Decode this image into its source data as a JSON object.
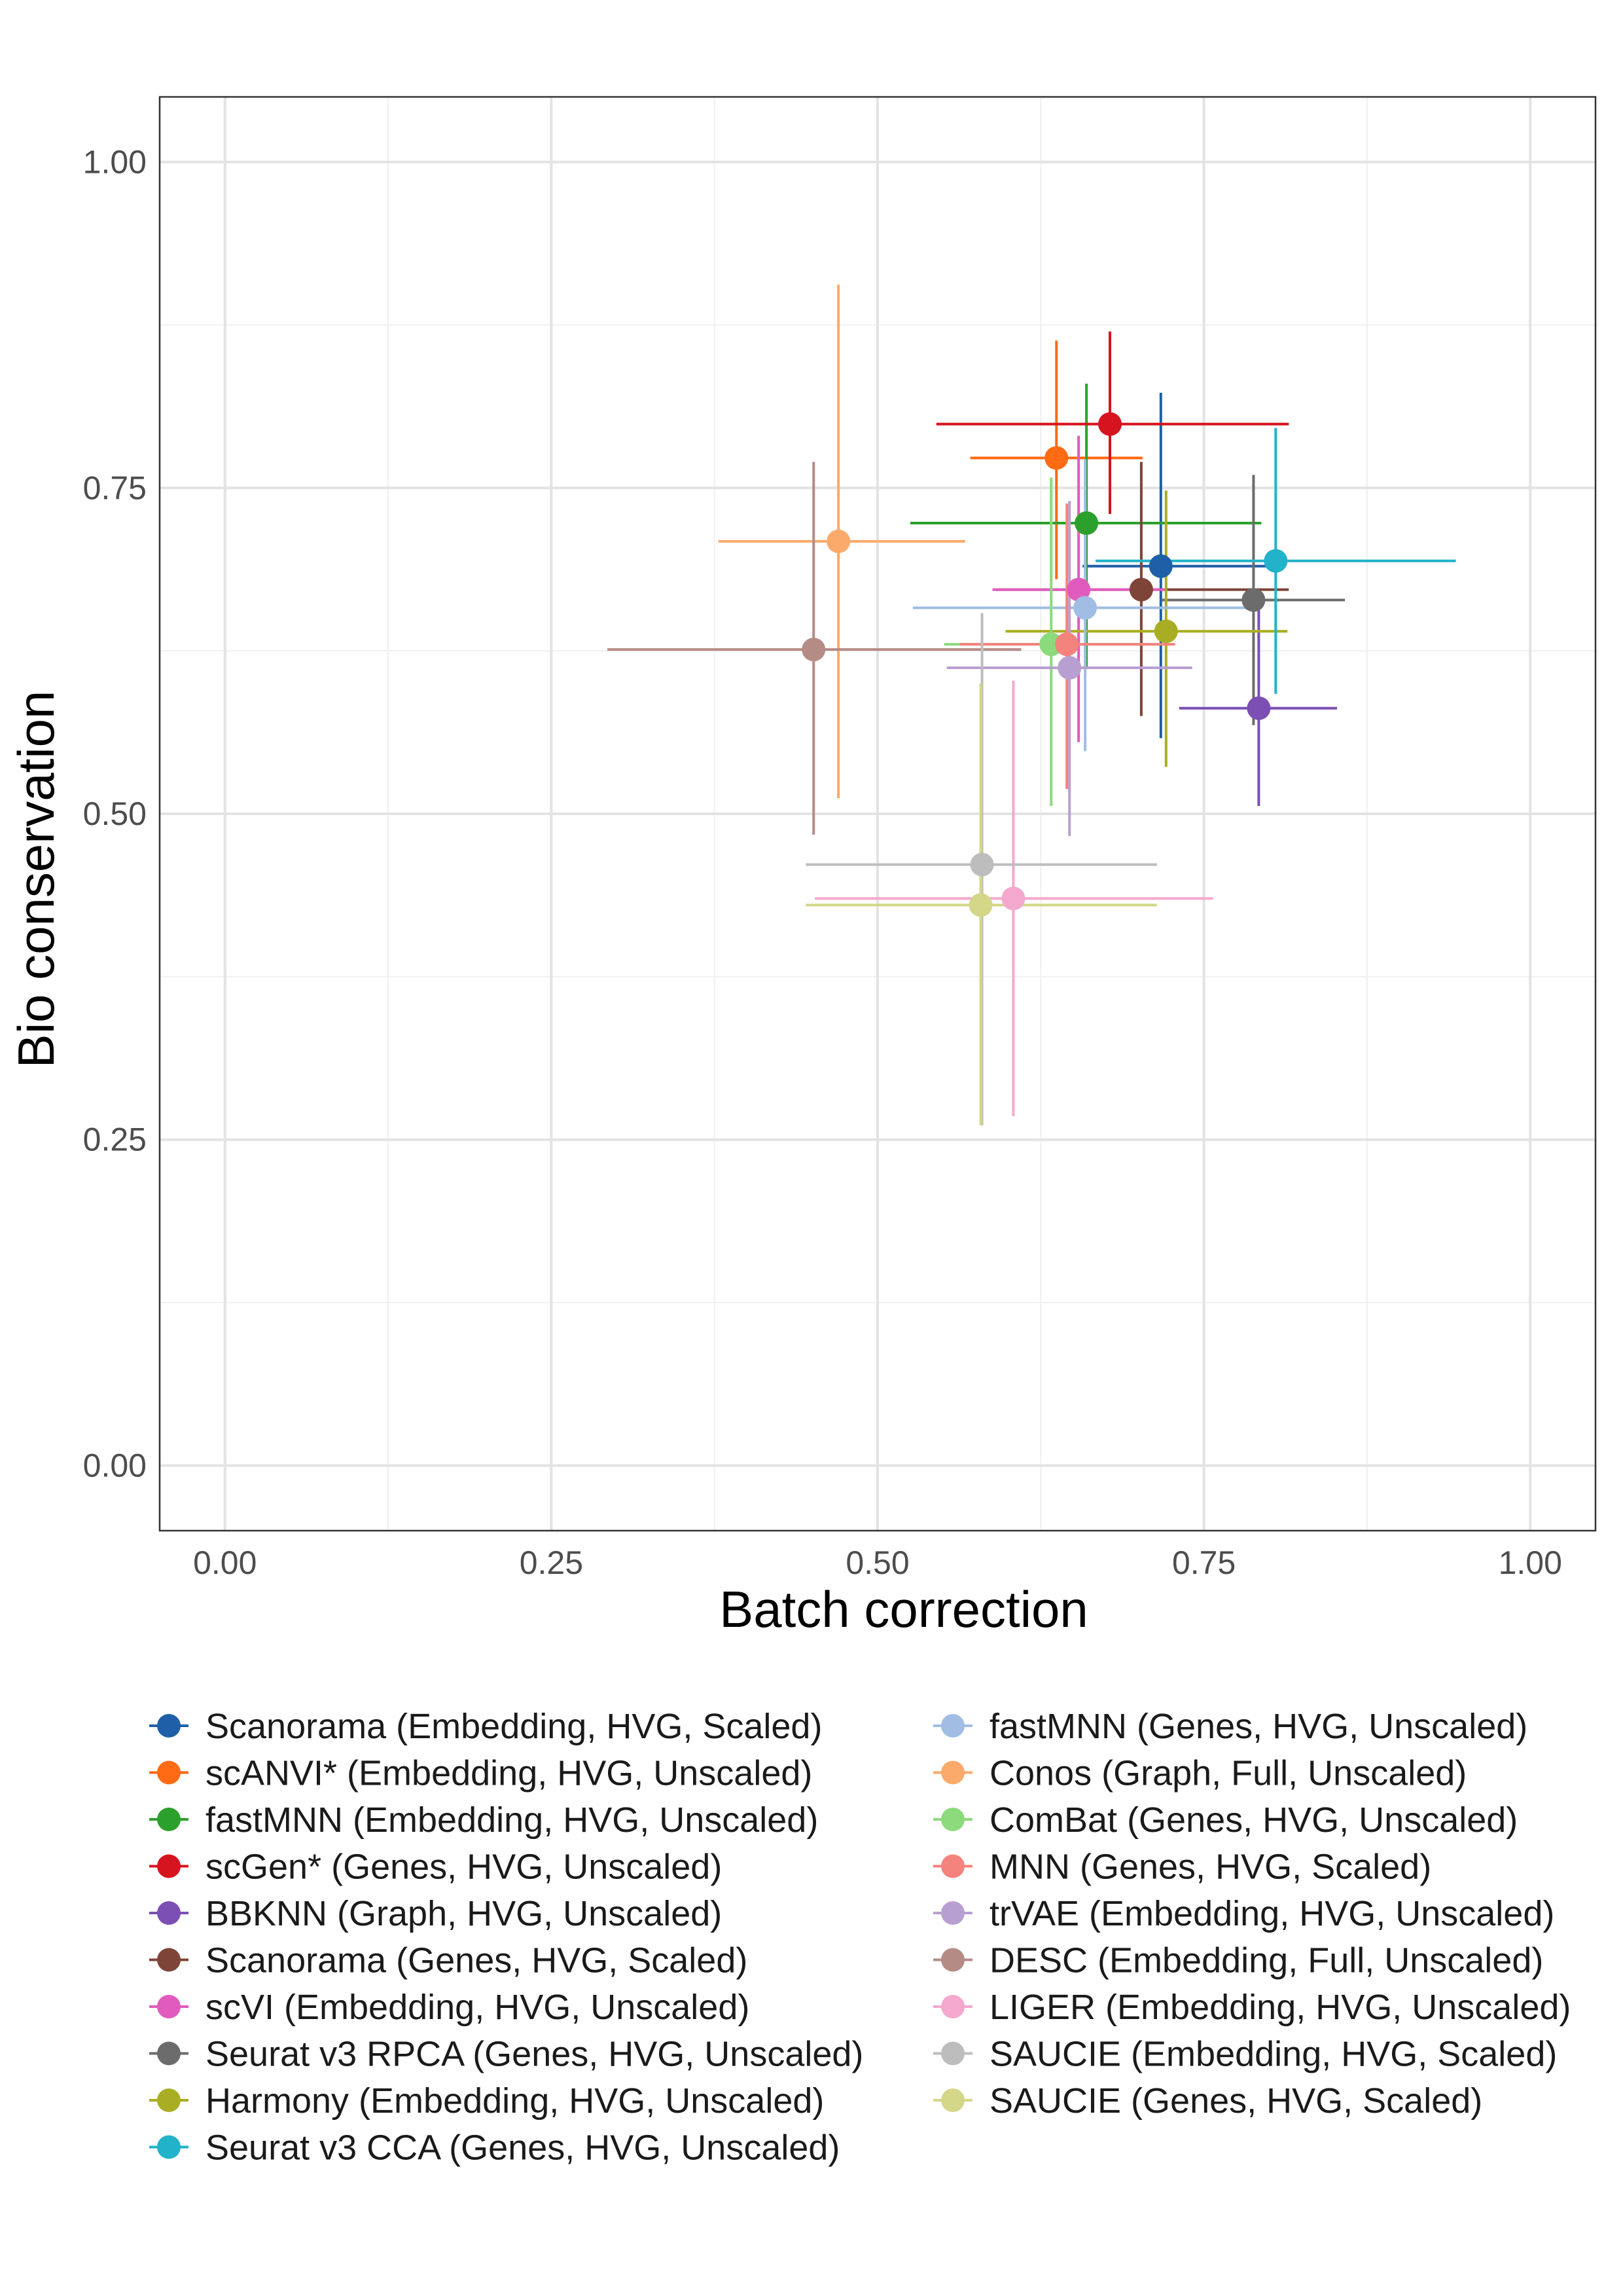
{
  "chart_data": {
    "type": "scatter",
    "xlabel": "Batch correction",
    "ylabel": "Bio conservation",
    "xlim": [
      -0.05,
      1.05
    ],
    "ylim": [
      -0.05,
      1.05
    ],
    "x_ticks": [
      "0.00",
      "0.25",
      "0.50",
      "0.75",
      "1.00"
    ],
    "y_ticks": [
      "0.00",
      "0.25",
      "0.50",
      "0.75",
      "1.00"
    ],
    "grid": true,
    "legend_position": "bottom, two columns",
    "series": [
      {
        "name": "Scanorama (Embedding, HVG, Scaled)",
        "color": "#1f5fa8",
        "x": 0.717,
        "y": 0.69,
        "x_err": [
          0.657,
          0.8
        ],
        "y_err": [
          0.558,
          0.823
        ]
      },
      {
        "name": "scANVI* (Embedding, HVG, Unscaled)",
        "color": "#ff6a13",
        "x": 0.637,
        "y": 0.773,
        "x_err": [
          0.571,
          0.703
        ],
        "y_err": [
          0.68,
          0.863
        ]
      },
      {
        "name": "fastMNN (Embedding, HVG, Unscaled)",
        "color": "#2ca02c",
        "x": 0.66,
        "y": 0.723,
        "x_err": [
          0.525,
          0.794
        ],
        "y_err": [
          0.613,
          0.83
        ]
      },
      {
        "name": "scGen* (Genes, HVG, Unscaled)",
        "color": "#d6141f",
        "x": 0.678,
        "y": 0.799,
        "x_err": [
          0.545,
          0.815
        ],
        "y_err": [
          0.73,
          0.87
        ]
      },
      {
        "name": "BBKNN (Graph, HVG, Unscaled)",
        "color": "#7b4fb3",
        "x": 0.792,
        "y": 0.581,
        "x_err": [
          0.731,
          0.852
        ],
        "y_err": [
          0.506,
          0.665
        ]
      },
      {
        "name": "Scanorama (Genes, HVG, Scaled)",
        "color": "#7e4438",
        "x": 0.702,
        "y": 0.672,
        "x_err": [
          0.59,
          0.815
        ],
        "y_err": [
          0.575,
          0.77
        ]
      },
      {
        "name": "scVI (Embedding, HVG, Unscaled)",
        "color": "#e05bbd",
        "x": 0.654,
        "y": 0.672,
        "x_err": [
          0.588,
          0.72
        ],
        "y_err": [
          0.555,
          0.79
        ]
      },
      {
        "name": "Seurat v3 RPCA (Genes, HVG, Unscaled)",
        "color": "#6c6c6c",
        "x": 0.788,
        "y": 0.664,
        "x_err": [
          0.718,
          0.858
        ],
        "y_err": [
          0.568,
          0.76
        ]
      },
      {
        "name": "Harmony (Embedding, HVG, Unscaled)",
        "color": "#a9ad23",
        "x": 0.721,
        "y": 0.64,
        "x_err": [
          0.598,
          0.814
        ],
        "y_err": [
          0.536,
          0.748
        ]
      },
      {
        "name": "Seurat v3 CCA (Genes, HVG, Unscaled)",
        "color": "#22b2c9",
        "x": 0.805,
        "y": 0.694,
        "x_err": [
          0.667,
          0.943
        ],
        "y_err": [
          0.592,
          0.796
        ]
      },
      {
        "name": "fastMNN (Genes, HVG, Unscaled)",
        "color": "#a1bde4",
        "x": 0.659,
        "y": 0.658,
        "x_err": [
          0.527,
          0.791
        ],
        "y_err": [
          0.548,
          0.772
        ]
      },
      {
        "name": "Conos (Graph, Full, Unscaled)",
        "color": "#fcaa6b",
        "x": 0.47,
        "y": 0.709,
        "x_err": [
          0.378,
          0.567
        ],
        "y_err": [
          0.512,
          0.906
        ]
      },
      {
        "name": "ComBat (Genes, HVG, Unscaled)",
        "color": "#8bda7b",
        "x": 0.633,
        "y": 0.63,
        "x_err": [
          0.551,
          0.715
        ],
        "y_err": [
          0.506,
          0.758
        ]
      },
      {
        "name": "MNN (Genes, HVG, Scaled)",
        "color": "#f4827d",
        "x": 0.645,
        "y": 0.63,
        "x_err": [
          0.563,
          0.728
        ],
        "y_err": [
          0.519,
          0.738
        ]
      },
      {
        "name": "trVAE (Embedding, HVG, Unscaled)",
        "color": "#b7a0d1",
        "x": 0.647,
        "y": 0.612,
        "x_err": [
          0.553,
          0.741
        ],
        "y_err": [
          0.483,
          0.74
        ]
      },
      {
        "name": "DESC (Embedding, Full, Unscaled)",
        "color": "#b58b86",
        "x": 0.451,
        "y": 0.626,
        "x_err": [
          0.293,
          0.61
        ],
        "y_err": [
          0.484,
          0.77
        ]
      },
      {
        "name": "LIGER (Embedding, HVG, Unscaled)",
        "color": "#f5a8cd",
        "x": 0.604,
        "y": 0.435,
        "x_err": [
          0.452,
          0.757
        ],
        "y_err": [
          0.268,
          0.602
        ]
      },
      {
        "name": "SAUCIE (Embedding, HVG, Scaled)",
        "color": "#bdbdbd",
        "x": 0.58,
        "y": 0.461,
        "x_err": [
          0.445,
          0.714
        ],
        "y_err": [
          0.261,
          0.654
        ]
      },
      {
        "name": "SAUCIE (Genes, HVG, Scaled)",
        "color": "#d4d688",
        "x": 0.579,
        "y": 0.43,
        "x_err": [
          0.445,
          0.714
        ],
        "y_err": [
          0.261,
          0.6
        ]
      }
    ]
  }
}
